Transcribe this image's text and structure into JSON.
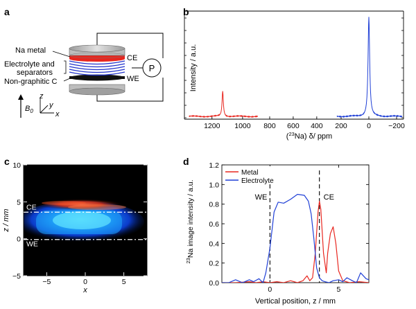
{
  "panels": {
    "a": {
      "letter": "a",
      "labels": {
        "na_metal": "Na metal",
        "electrolyte_line1": "Electrolyte and",
        "electrolyte_line2": "separators",
        "non_graphitic": "Non-graphitic C",
        "ce": "CE",
        "we": "WE",
        "potentiostat": "P",
        "b0": "B",
        "b0_sub": "0",
        "axis_z": "z",
        "axis_y": "y",
        "axis_x": "x"
      },
      "colors": {
        "na_metal": "#e8261f",
        "electrolyte": "#2233cc",
        "carbon": "#111111",
        "collector": "#bdbdbd"
      }
    },
    "b": {
      "letter": "b",
      "chart_data": {
        "type": "line",
        "ylabel": "Intensity / a.u.",
        "xlabel_sup": "23",
        "xlabel_rest": "Na) δ/ ppm",
        "xlabel_prefix": "(",
        "x_reversed": true,
        "xticks_left": [
          1200,
          1000,
          800,
          600,
          400
        ],
        "xticks_right": [
          200,
          0,
          -200
        ],
        "series": [
          {
            "color": "#e8261f",
            "peak_ppm": 1130,
            "peak_rel": 0.25,
            "from": 1350,
            "to": 900
          },
          {
            "color": "#1f3fd6",
            "peak_ppm": 0,
            "peak_rel": 0.97,
            "from": 230,
            "to": -240
          }
        ]
      }
    },
    "c": {
      "letter": "c",
      "chart_data": {
        "type": "heatmap",
        "ylabel": "z / mm",
        "xlabel": "x",
        "xticks": [
          -5,
          0,
          5
        ],
        "yticks": [
          10,
          5,
          0,
          -5
        ],
        "xlim": [
          -8,
          8
        ],
        "ylim": [
          -5,
          10
        ],
        "ce_label": "CE",
        "we_label": "WE",
        "ce_z": 3.6,
        "we_z": -0.1
      }
    },
    "d": {
      "letter": "d",
      "chart_data": {
        "type": "line",
        "ylabel_sup": "23",
        "ylabel_rest": "Na image intensity / a.u.",
        "xlabel": "Vertical position, z / mm",
        "xlim": [
          -3.5,
          7.2
        ],
        "ylim": [
          0,
          1.2
        ],
        "xticks": [
          0,
          5
        ],
        "yticks": [
          0.0,
          0.2,
          0.4,
          0.6,
          0.8,
          1.0,
          1.2
        ],
        "ce_label": "CE",
        "we_label": "WE",
        "we_z": 0,
        "ce_z": 3.6,
        "legend": {
          "position": "top-left"
        },
        "series": [
          {
            "name": "Metal",
            "color": "#e8261f",
            "x": [
              -3.5,
              -2.5,
              -1.5,
              -1.0,
              -0.5,
              0.0,
              0.5,
              1.0,
              1.5,
              2.0,
              2.4,
              2.7,
              2.9,
              3.1,
              3.3,
              3.5,
              3.6,
              3.7,
              3.9,
              4.1,
              4.2,
              4.4,
              4.6,
              4.8,
              5.0,
              5.3,
              5.8,
              6.5,
              7.2
            ],
            "y": [
              0.0,
              0.0,
              0.01,
              0.0,
              0.01,
              0.0,
              0.01,
              0.0,
              0.02,
              0.0,
              0.02,
              0.07,
              0.02,
              0.05,
              0.3,
              0.72,
              0.83,
              0.75,
              0.3,
              0.1,
              0.3,
              0.5,
              0.57,
              0.4,
              0.12,
              0.02,
              0.0,
              0.01,
              0.0
            ]
          },
          {
            "name": "Electrolyte",
            "color": "#1f3fd6",
            "x": [
              -3.5,
              -3.0,
              -2.5,
              -2.0,
              -1.5,
              -1.2,
              -0.8,
              -0.5,
              -0.3,
              0.0,
              0.3,
              0.6,
              1.0,
              1.5,
              2.0,
              2.5,
              2.8,
              3.0,
              3.2,
              3.4,
              3.6,
              3.8,
              4.0,
              4.3,
              4.6,
              5.0,
              5.3,
              5.6,
              6.0,
              6.3,
              6.6,
              7.0,
              7.2
            ],
            "y": [
              0.0,
              0.0,
              0.03,
              0.0,
              0.03,
              0.01,
              0.04,
              0.0,
              0.1,
              0.35,
              0.72,
              0.82,
              0.81,
              0.85,
              0.9,
              0.89,
              0.83,
              0.7,
              0.45,
              0.15,
              0.05,
              0.02,
              0.01,
              0.0,
              0.02,
              0.03,
              0.01,
              0.05,
              0.02,
              0.0,
              0.1,
              0.04,
              0.03
            ]
          }
        ]
      }
    }
  }
}
